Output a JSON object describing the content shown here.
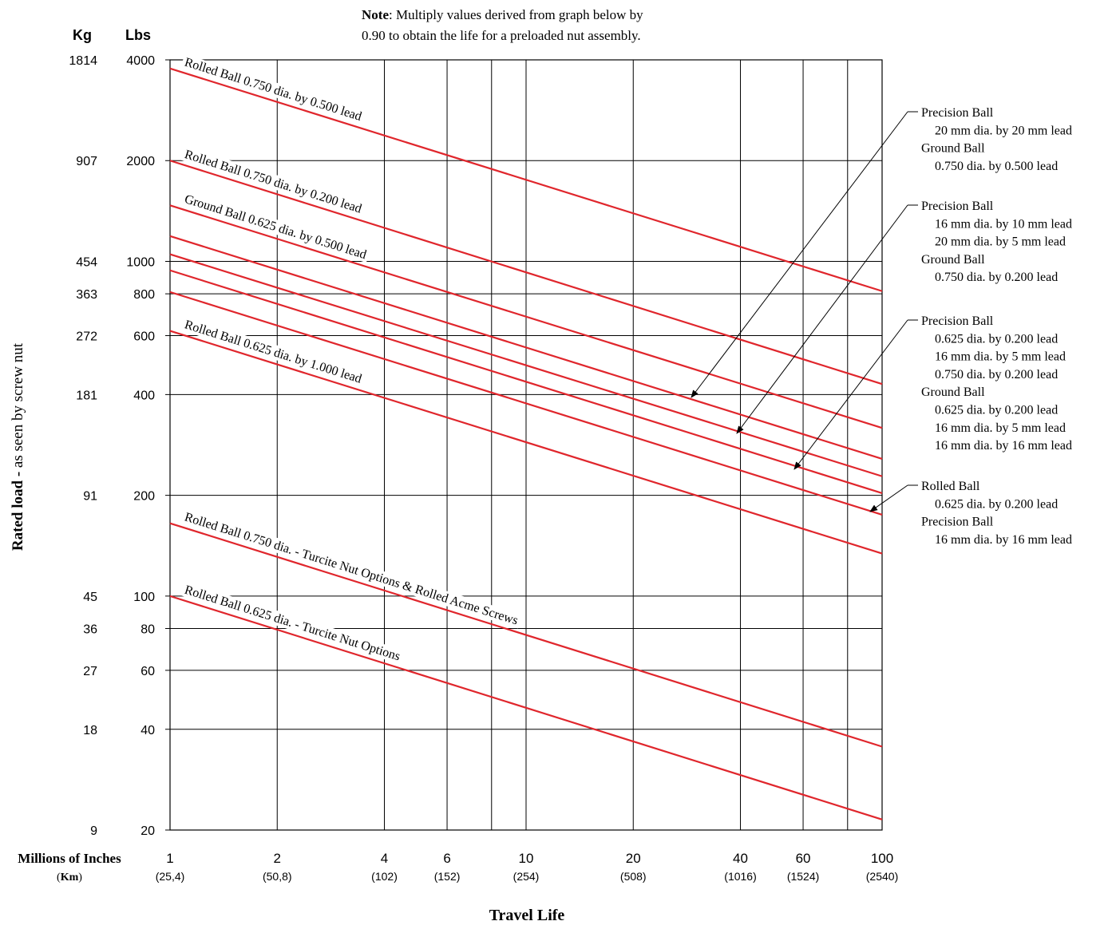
{
  "chart_data": {
    "type": "line",
    "scale": "log-log",
    "note_bold": "Note",
    "note_rest_1": ": Multiply values derived from graph below by",
    "note_line_2": "0.90 to obtain the life for a preloaded nut assembly.",
    "kg_header": "Kg",
    "lbs_header": "Lbs",
    "ylabel_bold": "Rated load -",
    "ylabel_rest": " as seen by screw nut",
    "xlabel": "Travel Life",
    "x_unit_label": "Millions of Inches",
    "x_unit_km_label": "Km",
    "xlim": [
      1,
      100
    ],
    "ylim": [
      20,
      4000
    ],
    "x_ticks": [
      {
        "value": 1,
        "label": "1",
        "km": "(25,4)"
      },
      {
        "value": 2,
        "label": "2",
        "km": "(50,8)"
      },
      {
        "value": 4,
        "label": "4",
        "km": "(102)"
      },
      {
        "value": 6,
        "label": "6",
        "km": "(152)"
      },
      {
        "value": 8,
        "label": "",
        "km": ""
      },
      {
        "value": 10,
        "label": "10",
        "km": "(254)"
      },
      {
        "value": 20,
        "label": "20",
        "km": "(508)"
      },
      {
        "value": 40,
        "label": "40",
        "km": "(1016)"
      },
      {
        "value": 60,
        "label": "60",
        "km": "(1524)"
      },
      {
        "value": 80,
        "label": "",
        "km": ""
      },
      {
        "value": 100,
        "label": "100",
        "km": "(2540)"
      }
    ],
    "y_ticks": [
      {
        "value": 4000,
        "lbs": "4000",
        "kg": "1814"
      },
      {
        "value": 2000,
        "lbs": "2000",
        "kg": "907"
      },
      {
        "value": 1000,
        "lbs": "1000",
        "kg": "454"
      },
      {
        "value": 800,
        "lbs": "800",
        "kg": "363"
      },
      {
        "value": 600,
        "lbs": "600",
        "kg": "272"
      },
      {
        "value": 400,
        "lbs": "400",
        "kg": "181"
      },
      {
        "value": 200,
        "lbs": "200",
        "kg": "91"
      },
      {
        "value": 100,
        "lbs": "100",
        "kg": "45"
      },
      {
        "value": 80,
        "lbs": "80",
        "kg": "36"
      },
      {
        "value": 60,
        "lbs": "60",
        "kg": "27"
      },
      {
        "value": 40,
        "lbs": "40",
        "kg": "18"
      },
      {
        "value": 20,
        "lbs": "20",
        "kg": "9"
      }
    ],
    "line_color": "#e0262c",
    "series": [
      {
        "name": "Rolled Ball 0.750 dia. by 0.500 lead",
        "y_at_1": 3770,
        "y_at_100": 815,
        "labeled": true
      },
      {
        "name": "Rolled Ball 0.750 dia. by 0.200 lead",
        "y_at_1": 2000,
        "y_at_100": 430,
        "labeled": true
      },
      {
        "name": "Ground Ball 0.625 dia. by 0.500 lead",
        "y_at_1": 1470,
        "y_at_100": 318,
        "labeled": true
      },
      {
        "name": "",
        "y_at_1": 1190,
        "y_at_100": 257,
        "labeled": false
      },
      {
        "name": "",
        "y_at_1": 1050,
        "y_at_100": 228,
        "labeled": false
      },
      {
        "name": "",
        "y_at_1": 940,
        "y_at_100": 203,
        "labeled": false
      },
      {
        "name": "",
        "y_at_1": 810,
        "y_at_100": 175,
        "labeled": false
      },
      {
        "name": "Rolled Ball 0.625 dia. by 1.000 lead",
        "y_at_1": 620,
        "y_at_100": 134,
        "labeled": true
      },
      {
        "name": "Rolled Ball 0.750 dia. - Turcite Nut Options & Rolled Acme Screws",
        "y_at_1": 165,
        "y_at_100": 35.5,
        "labeled": true
      },
      {
        "name": "Rolled Ball 0.625 dia. - Turcite Nut Options",
        "y_at_1": 100,
        "y_at_100": 21.5,
        "labeled": true
      }
    ],
    "annotations": [
      {
        "lines": [
          {
            "text": "Precision Ball",
            "indent": false
          },
          {
            "text": "20 mm dia. by 20 mm lead",
            "indent": true
          },
          {
            "text": "Ground Ball",
            "indent": false
          },
          {
            "text": "0.750 dia. by 0.500 lead",
            "indent": true
          }
        ]
      },
      {
        "lines": [
          {
            "text": "Precision Ball",
            "indent": false
          },
          {
            "text": "16 mm dia. by 10 mm lead",
            "indent": true
          },
          {
            "text": "20 mm dia. by 5 mm lead",
            "indent": true
          },
          {
            "text": "Ground Ball",
            "indent": false
          },
          {
            "text": "0.750 dia. by 0.200 lead",
            "indent": true
          }
        ]
      },
      {
        "lines": [
          {
            "text": "Precision Ball",
            "indent": false
          },
          {
            "text": "0.625 dia. by 0.200 lead",
            "indent": true
          },
          {
            "text": "16 mm dia. by 5 mm lead",
            "indent": true
          },
          {
            "text": "0.750 dia. by 0.200 lead",
            "indent": true
          },
          {
            "text": "Ground Ball",
            "indent": false
          },
          {
            "text": "0.625 dia. by 0.200 lead",
            "indent": true
          },
          {
            "text": "16 mm dia. by 5 mm lead",
            "indent": true
          },
          {
            "text": "16 mm dia. by 16 mm lead",
            "indent": true
          }
        ]
      },
      {
        "lines": [
          {
            "text": "Rolled Ball",
            "indent": false
          },
          {
            "text": "0.625 dia. by 0.200 lead",
            "indent": true
          },
          {
            "text": "Precision Ball",
            "indent": false
          },
          {
            "text": "16 mm dia. by 16 mm lead",
            "indent": true
          }
        ]
      }
    ],
    "grid": true
  }
}
